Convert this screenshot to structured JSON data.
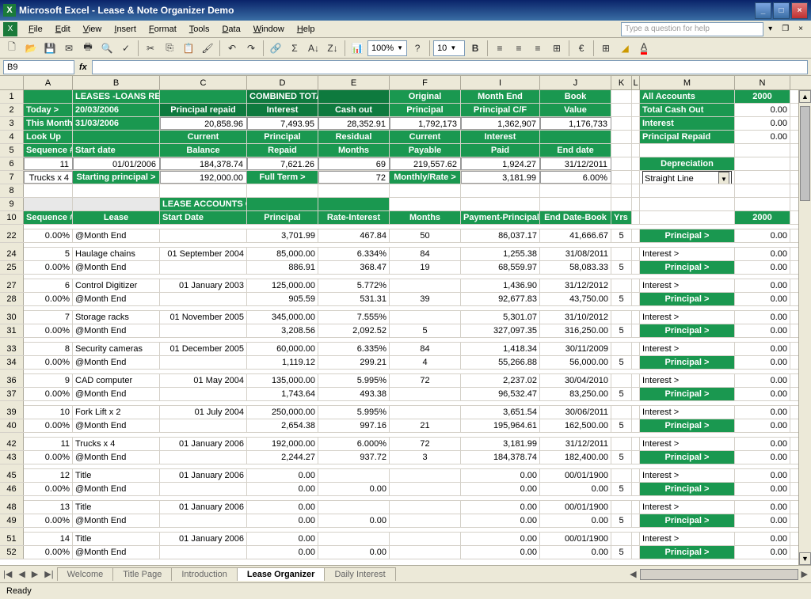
{
  "window": {
    "title": "Microsoft Excel - Lease & Note Organizer Demo"
  },
  "menus": [
    "File",
    "Edit",
    "View",
    "Insert",
    "Format",
    "Tools",
    "Data",
    "Window",
    "Help"
  ],
  "helpPlaceholder": "Type a question for help",
  "nameBox": "B9",
  "fontSize": "10",
  "zoom": "100%",
  "colHeaders": [
    "A",
    "B",
    "C",
    "D",
    "E",
    "F",
    "I",
    "J",
    "K",
    "L",
    "M",
    "N"
  ],
  "colWidths": [
    "wA",
    "wB",
    "wC",
    "wD",
    "wE",
    "wF",
    "wI",
    "wJ",
    "wK",
    "wL",
    "wM",
    "wN"
  ],
  "topBlock": {
    "r1": {
      "title": "LEASES -LOANS REPAYMENTS ORGANIZER",
      "combined": "COMBINED TOTALS",
      "orig": "Original",
      "monthEnd": "Month End",
      "book": "Book",
      "all": "All Accounts",
      "year": "2000"
    },
    "r2": {
      "today": "Today >",
      "todayV": "20/03/2006",
      "pr": "Principal repaid",
      "int": "Interest",
      "cash": "Cash out",
      "prin": "Principal",
      "pc": "Principal C/F",
      "val": "Value",
      "tco": "Total Cash Out",
      "z": "0.00"
    },
    "r3": {
      "tm": "This Month >",
      "tmV": "31/03/2006",
      "c": "20,858.96",
      "d": "7,493.95",
      "e": "28,352.91",
      "f": "1,792,173",
      "i": "1,362,907",
      "j": "1,176,733",
      "int": "Interest",
      "z": "0.00"
    },
    "r4": {
      "lu": "Look Up",
      "cur": "Current",
      "prin": "Principal",
      "res": "Residual",
      "cur2": "Current",
      "int": "Interest",
      "pr": "Principal Repaid",
      "z": "0.00"
    },
    "r5": {
      "seq": "Sequence #",
      "sd": "Start date",
      "bal": "Balance",
      "rep": "Repaid",
      "mon": "Months",
      "pay": "Payable",
      "paid": "Paid",
      "ed": "End date"
    },
    "r6": {
      "a": "11",
      "b": "01/01/2006",
      "c": "184,378.74",
      "d": "7,621.26",
      "e": "69",
      "f": "219,557.62",
      "i": "1,924.27",
      "j": "31/12/2011",
      "dep": "Depreciation"
    },
    "r7": {
      "a": "Trucks x 4",
      "b": "Starting principal >",
      "c": "192,000.00",
      "d": "Full Term >",
      "e": "72",
      "f": "Monthly/Rate >",
      "i": "3,181.99",
      "j": "6.00%",
      "sl": "Straight Line"
    }
  },
  "section": {
    "title": "LEASE ACCOUNTS ORGANIZER"
  },
  "hdr10": {
    "seq": "Sequence #",
    "lease": "Lease",
    "sd": "Start Date",
    "prin": "Principal",
    "rate": "Rate-Interest",
    "mon": "Months",
    "pay": "Payment-Principal",
    "ed": "End Date-Book",
    "yrs": "Yrs",
    "year": "2000"
  },
  "rows": [
    {
      "n": 22,
      "a": "0.00%",
      "b": "@Month End",
      "c": "",
      "d": "3,701.99",
      "e": "467.84",
      "f": "50",
      "i": "86,037.17",
      "j": "41,666.67",
      "k": "5",
      "m": "Principal >",
      "mCls": "greencell",
      "n2": "0.00"
    },
    {
      "n": 24,
      "a": "5",
      "b": "Haulage chains",
      "c": "01 September 2004",
      "d": "85,000.00",
      "e": "6.334%",
      "f": "84",
      "i": "1,255.38",
      "j": "31/08/2011",
      "k": "",
      "m": "Interest >",
      "mCls": "",
      "n2": "0.00"
    },
    {
      "n": 25,
      "a": "0.00%",
      "b": "@Month End",
      "c": "",
      "d": "886.91",
      "e": "368.47",
      "f": "19",
      "i": "68,559.97",
      "j": "58,083.33",
      "k": "5",
      "m": "Principal >",
      "mCls": "greencell",
      "n2": "0.00"
    },
    {
      "n": 27,
      "a": "6",
      "b": "Control Digitizer",
      "c": "01 January 2003",
      "d": "125,000.00",
      "e": "5.772%",
      "f": "",
      "i": "1,436.90",
      "j": "31/12/2012",
      "k": "",
      "m": "Interest >",
      "mCls": "",
      "n2": "0.00"
    },
    {
      "n": 28,
      "a": "0.00%",
      "b": "@Month End",
      "c": "",
      "d": "905.59",
      "e": "531.31",
      "f": "39",
      "i": "92,677.83",
      "j": "43,750.00",
      "k": "5",
      "m": "Principal >",
      "mCls": "greencell",
      "n2": "0.00"
    },
    {
      "n": 30,
      "a": "7",
      "b": "Storage racks",
      "c": "01 November 2005",
      "d": "345,000.00",
      "e": "7.555%",
      "f": "",
      "i": "5,301.07",
      "j": "31/10/2012",
      "k": "",
      "m": "Interest >",
      "mCls": "",
      "n2": "0.00"
    },
    {
      "n": 31,
      "a": "0.00%",
      "b": "@Month End",
      "c": "",
      "d": "3,208.56",
      "e": "2,092.52",
      "f": "5",
      "i": "327,097.35",
      "j": "316,250.00",
      "k": "5",
      "m": "Principal >",
      "mCls": "greencell",
      "n2": "0.00"
    },
    {
      "n": 33,
      "a": "8",
      "b": "Security cameras",
      "c": "01 December 2005",
      "d": "60,000.00",
      "e": "6.335%",
      "f": "84",
      "i": "1,418.34",
      "j": "30/11/2009",
      "k": "",
      "m": "Interest >",
      "mCls": "",
      "n2": "0.00"
    },
    {
      "n": 34,
      "a": "0.00%",
      "b": "@Month End",
      "c": "",
      "d": "1,119.12",
      "e": "299.21",
      "f": "4",
      "i": "55,266.88",
      "j": "56,000.00",
      "k": "5",
      "m": "Principal >",
      "mCls": "greencell",
      "n2": "0.00"
    },
    {
      "n": 36,
      "a": "9",
      "b": "CAD computer",
      "c": "01 May 2004",
      "d": "135,000.00",
      "e": "5.995%",
      "f": "72",
      "i": "2,237.02",
      "j": "30/04/2010",
      "k": "",
      "m": "Interest >",
      "mCls": "",
      "n2": "0.00"
    },
    {
      "n": 37,
      "a": "0.00%",
      "b": "@Month End",
      "c": "",
      "d": "1,743.64",
      "e": "493.38",
      "f": "",
      "i": "96,532.47",
      "j": "83,250.00",
      "k": "5",
      "m": "Principal >",
      "mCls": "greencell",
      "n2": "0.00"
    },
    {
      "n": 39,
      "a": "10",
      "b": "Fork Lift x 2",
      "c": "01 July 2004",
      "d": "250,000.00",
      "e": "5.995%",
      "f": "",
      "i": "3,651.54",
      "j": "30/06/2011",
      "k": "",
      "m": "Interest >",
      "mCls": "",
      "n2": "0.00"
    },
    {
      "n": 40,
      "a": "0.00%",
      "b": "@Month End",
      "c": "",
      "d": "2,654.38",
      "e": "997.16",
      "f": "21",
      "i": "195,964.61",
      "j": "162,500.00",
      "k": "5",
      "m": "Principal >",
      "mCls": "greencell",
      "n2": "0.00"
    },
    {
      "n": 42,
      "a": "11",
      "b": "Trucks x 4",
      "c": "01 January 2006",
      "d": "192,000.00",
      "e": "6.000%",
      "f": "72",
      "i": "3,181.99",
      "j": "31/12/2011",
      "k": "",
      "m": "Interest >",
      "mCls": "",
      "n2": "0.00"
    },
    {
      "n": 43,
      "a": "0.00%",
      "b": "@Month End",
      "c": "",
      "d": "2,244.27",
      "e": "937.72",
      "f": "3",
      "i": "184,378.74",
      "j": "182,400.00",
      "k": "5",
      "m": "Principal >",
      "mCls": "greencell",
      "n2": "0.00"
    },
    {
      "n": 45,
      "a": "12",
      "b": "Title",
      "c": "01 January 2006",
      "d": "0.00",
      "e": "",
      "f": "",
      "i": "0.00",
      "j": "00/01/1900",
      "k": "",
      "m": "Interest >",
      "mCls": "",
      "n2": "0.00"
    },
    {
      "n": 46,
      "a": "0.00%",
      "b": "@Month End",
      "c": "",
      "d": "0.00",
      "e": "0.00",
      "f": "",
      "i": "0.00",
      "j": "0.00",
      "k": "5",
      "m": "Principal >",
      "mCls": "greencell",
      "n2": "0.00"
    },
    {
      "n": 48,
      "a": "13",
      "b": "Title",
      "c": "01 January 2006",
      "d": "0.00",
      "e": "",
      "f": "",
      "i": "0.00",
      "j": "00/01/1900",
      "k": "",
      "m": "Interest >",
      "mCls": "",
      "n2": "0.00"
    },
    {
      "n": 49,
      "a": "0.00%",
      "b": "@Month End",
      "c": "",
      "d": "0.00",
      "e": "0.00",
      "f": "",
      "i": "0.00",
      "j": "0.00",
      "k": "5",
      "m": "Principal >",
      "mCls": "greencell",
      "n2": "0.00"
    },
    {
      "n": 51,
      "a": "14",
      "b": "Title",
      "c": "01 January 2006",
      "d": "0.00",
      "e": "",
      "f": "",
      "i": "0.00",
      "j": "00/01/1900",
      "k": "",
      "m": "Interest >",
      "mCls": "",
      "n2": "0.00"
    },
    {
      "n": 52,
      "a": "0.00%",
      "b": "@Month End",
      "c": "",
      "d": "0.00",
      "e": "0.00",
      "f": "",
      "i": "0.00",
      "j": "0.00",
      "k": "5",
      "m": "Principal >",
      "mCls": "greencell",
      "n2": "0.00"
    }
  ],
  "tabs": [
    "Welcome",
    "Title Page",
    "Introduction",
    "Lease Organizer",
    "Daily Interest"
  ],
  "activeTab": 3,
  "status": "Ready"
}
